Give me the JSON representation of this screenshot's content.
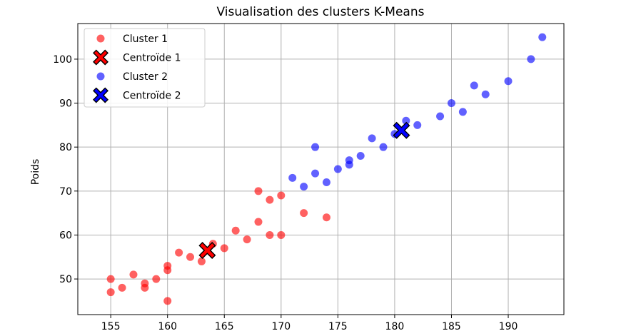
{
  "chart_data": {
    "type": "scatter",
    "title": "Visualisation des clusters K-Means",
    "xlabel": "",
    "ylabel": "Poids",
    "xlim": [
      152.1,
      194.9
    ],
    "ylim": [
      41.9,
      108.1
    ],
    "xticks": [
      155,
      160,
      165,
      170,
      175,
      180,
      185,
      190
    ],
    "yticks": [
      50,
      60,
      70,
      80,
      90,
      100
    ],
    "grid": true,
    "legend_position": "upper-left",
    "series": [
      {
        "name": "Cluster 1",
        "color": "#ff0000",
        "marker": "circle",
        "points": [
          [
            155,
            50
          ],
          [
            155,
            47
          ],
          [
            156,
            48
          ],
          [
            157,
            51
          ],
          [
            158,
            49
          ],
          [
            158,
            48
          ],
          [
            159,
            50
          ],
          [
            160,
            53
          ],
          [
            160,
            52
          ],
          [
            160,
            45
          ],
          [
            161,
            56
          ],
          [
            162,
            55
          ],
          [
            163,
            54
          ],
          [
            164,
            58
          ],
          [
            165,
            57
          ],
          [
            166,
            61
          ],
          [
            167,
            59
          ],
          [
            168,
            70
          ],
          [
            168,
            63
          ],
          [
            169,
            68
          ],
          [
            169,
            60
          ],
          [
            170,
            69
          ],
          [
            170,
            60
          ],
          [
            172,
            65
          ],
          [
            174,
            64
          ]
        ]
      },
      {
        "name": "Centroïde 1",
        "color": "#ff0000",
        "marker": "X",
        "points": [
          [
            163.5,
            56.5
          ]
        ]
      },
      {
        "name": "Cluster 2",
        "color": "#0000ff",
        "marker": "circle",
        "points": [
          [
            171,
            73
          ],
          [
            172,
            71
          ],
          [
            173,
            80
          ],
          [
            173,
            74
          ],
          [
            174,
            72
          ],
          [
            175,
            75
          ],
          [
            176,
            77
          ],
          [
            176,
            76
          ],
          [
            177,
            78
          ],
          [
            178,
            82
          ],
          [
            179,
            80
          ],
          [
            180,
            83
          ],
          [
            181,
            86
          ],
          [
            182,
            85
          ],
          [
            184,
            87
          ],
          [
            185,
            90
          ],
          [
            186,
            88
          ],
          [
            187,
            94
          ],
          [
            188,
            92
          ],
          [
            190,
            95
          ],
          [
            192,
            100
          ],
          [
            193,
            105
          ]
        ]
      },
      {
        "name": "Centroïde 2",
        "color": "#0000ff",
        "marker": "X",
        "points": [
          [
            180.6,
            83.8
          ]
        ]
      }
    ]
  }
}
